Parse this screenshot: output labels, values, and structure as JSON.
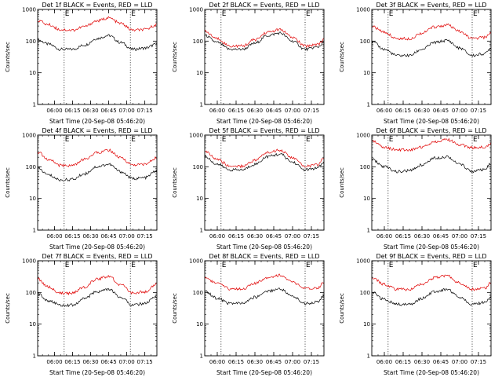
{
  "figure": {
    "xlabel": "Start Time (20-Sep-08 05:46:20)",
    "ylabel": "Counts/sec",
    "y_ticks": [
      1,
      10,
      100,
      1000
    ],
    "y_tick_labels": [
      "1",
      "10",
      "100",
      "1000"
    ],
    "series_colors": {
      "events": "#000000",
      "lld": "#e00000"
    },
    "axis_color": "#000000",
    "background": "#ffffff",
    "eclipse_marker": "E"
  },
  "chart_data": [
    {
      "type": "line",
      "title": "Det 1f BLACK = Events, RED = LLD",
      "xlabel": "Start Time (20-Sep-08 05:46:20)",
      "ylabel": "Counts/sec",
      "yscale": "log",
      "ylim": [
        1,
        1000
      ],
      "x_tick_labels": [
        "06:00",
        "06:15",
        "06:30",
        "06:45",
        "07:00",
        "07:15"
      ],
      "x_ticks": [
        "06:00",
        "06:15",
        "06:30",
        "06:45",
        "07:00",
        "07:15"
      ],
      "xlim": [
        "05:46",
        "07:25"
      ],
      "eclipse_times": [
        "06:08",
        "07:03"
      ],
      "series": [
        {
          "name": "BLACK = Events",
          "color": "#000000",
          "x": [
            "05:46",
            "05:55",
            "06:05",
            "06:15",
            "06:25",
            "06:35",
            "06:45",
            "06:55",
            "07:05",
            "07:15",
            "07:25"
          ],
          "values": [
            110,
            80,
            55,
            55,
            75,
            120,
            150,
            90,
            55,
            60,
            80
          ]
        },
        {
          "name": "RED = LLD",
          "color": "#e00000",
          "x": [
            "05:46",
            "05:55",
            "06:05",
            "06:15",
            "06:25",
            "06:35",
            "06:45",
            "06:55",
            "07:05",
            "07:15",
            "07:25"
          ],
          "values": [
            450,
            330,
            230,
            220,
            290,
            430,
            540,
            360,
            220,
            230,
            330
          ]
        }
      ]
    },
    {
      "type": "line",
      "title": "Det 2f BLACK = Events, RED = LLD",
      "xlabel": "Start Time (20-Sep-08 05:46:20)",
      "ylabel": "Counts/sec",
      "yscale": "log",
      "ylim": [
        1,
        1000
      ],
      "x_tick_labels": [
        "06:00",
        "06:15",
        "06:30",
        "06:45",
        "07:00",
        "07:15"
      ],
      "x_ticks": [
        "06:00",
        "06:15",
        "06:30",
        "06:45",
        "07:00",
        "07:15"
      ],
      "xlim": [
        "05:50",
        "07:25"
      ],
      "eclipse_times": [
        "06:03",
        "07:10"
      ],
      "series": [
        {
          "name": "BLACK = Events",
          "color": "#000000",
          "x": [
            "05:50",
            "06:00",
            "06:10",
            "06:20",
            "06:30",
            "06:40",
            "06:50",
            "07:00",
            "07:10",
            "07:20",
            "07:25"
          ],
          "values": [
            150,
            90,
            55,
            55,
            85,
            150,
            180,
            100,
            55,
            65,
            90
          ]
        },
        {
          "name": "RED = LLD",
          "color": "#e00000",
          "x": [
            "05:50",
            "06:00",
            "06:10",
            "06:20",
            "06:30",
            "06:40",
            "06:50",
            "07:00",
            "07:10",
            "07:20",
            "07:25"
          ],
          "values": [
            200,
            120,
            70,
            70,
            110,
            190,
            230,
            130,
            70,
            80,
            110
          ]
        }
      ]
    },
    {
      "type": "line",
      "title": "Det 3f BLACK = Events, RED = LLD",
      "xlabel": "Start Time (20-Sep-08 05:46:20)",
      "ylabel": "Counts/sec",
      "yscale": "log",
      "ylim": [
        1,
        1000
      ],
      "x_tick_labels": [
        "06:00",
        "06:15",
        "06:30",
        "06:45",
        "07:00",
        "07:15"
      ],
      "x_ticks": [
        "06:00",
        "06:15",
        "06:30",
        "06:45",
        "07:00",
        "07:15"
      ],
      "xlim": [
        "05:50",
        "07:25"
      ],
      "eclipse_times": [
        "06:03",
        "07:10"
      ],
      "series": [
        {
          "name": "BLACK = Events",
          "color": "#000000",
          "x": [
            "05:50",
            "06:00",
            "06:10",
            "06:20",
            "06:30",
            "06:40",
            "06:50",
            "07:00",
            "07:10",
            "07:20",
            "07:25"
          ],
          "values": [
            95,
            55,
            35,
            35,
            55,
            90,
            105,
            60,
            35,
            40,
            60
          ]
        },
        {
          "name": "RED = LLD",
          "color": "#e00000",
          "x": [
            "05:50",
            "06:00",
            "06:10",
            "06:20",
            "06:30",
            "06:40",
            "06:50",
            "07:00",
            "07:10",
            "07:20",
            "07:25"
          ],
          "values": [
            290,
            190,
            120,
            120,
            180,
            280,
            320,
            200,
            120,
            130,
            180
          ]
        }
      ]
    },
    {
      "type": "line",
      "title": "Det 4f BLACK = Events, RED = LLD",
      "xlabel": "Start Time (20-Sep-08 05:46:20)",
      "ylabel": "Counts/sec",
      "yscale": "log",
      "ylim": [
        1,
        1000
      ],
      "x_tick_labels": [
        "06:00",
        "06:15",
        "06:30",
        "06:45",
        "07:00",
        "07:15"
      ],
      "x_ticks": [
        "06:00",
        "06:15",
        "06:30",
        "06:45",
        "07:00",
        "07:15"
      ],
      "xlim": [
        "05:46",
        "07:25"
      ],
      "eclipse_times": [
        "06:08",
        "07:03"
      ],
      "series": [
        {
          "name": "BLACK = Events",
          "color": "#000000",
          "x": [
            "05:46",
            "05:55",
            "06:05",
            "06:15",
            "06:25",
            "06:35",
            "06:45",
            "06:55",
            "07:05",
            "07:15",
            "07:25"
          ],
          "values": [
            90,
            55,
            38,
            40,
            60,
            100,
            120,
            70,
            42,
            45,
            75
          ]
        },
        {
          "name": "RED = LLD",
          "color": "#e00000",
          "x": [
            "05:46",
            "05:55",
            "06:05",
            "06:15",
            "06:25",
            "06:35",
            "06:45",
            "06:55",
            "07:05",
            "07:15",
            "07:25"
          ],
          "values": [
            290,
            170,
            110,
            110,
            170,
            280,
            330,
            190,
            115,
            120,
            190
          ]
        }
      ]
    },
    {
      "type": "line",
      "title": "Det 5f BLACK = Events, RED = LLD",
      "xlabel": "Start Time (20-Sep-08 05:46:20)",
      "ylabel": "Counts/sec",
      "yscale": "log",
      "ylim": [
        1,
        1000
      ],
      "x_tick_labels": [
        "06:00",
        "06:15",
        "06:30",
        "06:45",
        "07:00",
        "07:15"
      ],
      "x_ticks": [
        "06:00",
        "06:15",
        "06:30",
        "06:45",
        "07:00",
        "07:15"
      ],
      "xlim": [
        "05:50",
        "07:25"
      ],
      "eclipse_times": [
        "06:03",
        "07:10"
      ],
      "series": [
        {
          "name": "BLACK = Events",
          "color": "#000000",
          "x": [
            "05:50",
            "06:00",
            "06:10",
            "06:20",
            "06:30",
            "06:40",
            "06:50",
            "07:00",
            "07:10",
            "07:20",
            "07:25"
          ],
          "values": [
            210,
            120,
            80,
            80,
            120,
            210,
            250,
            140,
            80,
            90,
            140
          ]
        },
        {
          "name": "RED = LLD",
          "color": "#e00000",
          "x": [
            "05:50",
            "06:00",
            "06:10",
            "06:20",
            "06:30",
            "06:40",
            "06:50",
            "07:00",
            "07:10",
            "07:20",
            "07:25"
          ],
          "values": [
            300,
            170,
            105,
            105,
            160,
            280,
            340,
            190,
            105,
            115,
            190
          ]
        }
      ]
    },
    {
      "type": "line",
      "title": "Det 6f BLACK = Events, RED = LLD",
      "xlabel": "Start Time (20-Sep-08 05:46:20)",
      "ylabel": "Counts/sec",
      "yscale": "log",
      "ylim": [
        1,
        1000
      ],
      "x_tick_labels": [
        "06:00",
        "06:15",
        "06:30",
        "06:45",
        "07:00",
        "07:15"
      ],
      "x_ticks": [
        "06:00",
        "06:15",
        "06:30",
        "06:45",
        "07:00",
        "07:15"
      ],
      "xlim": [
        "05:50",
        "07:25"
      ],
      "eclipse_times": [
        "06:03",
        "07:10"
      ],
      "series": [
        {
          "name": "BLACK = Events",
          "color": "#000000",
          "x": [
            "05:50",
            "06:00",
            "06:10",
            "06:20",
            "06:30",
            "06:40",
            "06:50",
            "07:00",
            "07:10",
            "07:20",
            "07:25"
          ],
          "values": [
            170,
            100,
            70,
            75,
            115,
            190,
            210,
            120,
            72,
            80,
            125
          ]
        },
        {
          "name": "RED = LLD",
          "color": "#e00000",
          "x": [
            "05:50",
            "06:00",
            "06:10",
            "06:20",
            "06:30",
            "06:40",
            "06:50",
            "07:00",
            "07:10",
            "07:20",
            "07:25"
          ],
          "values": [
            650,
            420,
            340,
            340,
            420,
            620,
            720,
            500,
            400,
            420,
            560
          ]
        }
      ]
    },
    {
      "type": "line",
      "title": "Det 7f BLACK = Events, RED = LLD",
      "xlabel": "Start Time (20-Sep-08 05:46:20)",
      "ylabel": "Counts/sec",
      "yscale": "log",
      "ylim": [
        1,
        1000
      ],
      "x_tick_labels": [
        "06:00",
        "06:15",
        "06:30",
        "06:45",
        "07:00",
        "07:15"
      ],
      "x_ticks": [
        "06:00",
        "06:15",
        "06:30",
        "06:45",
        "07:00",
        "07:15"
      ],
      "xlim": [
        "05:46",
        "07:25"
      ],
      "eclipse_times": [
        "06:08",
        "07:03"
      ],
      "series": [
        {
          "name": "BLACK = Events",
          "color": "#000000",
          "x": [
            "05:46",
            "05:55",
            "06:05",
            "06:15",
            "06:25",
            "06:35",
            "06:45",
            "06:55",
            "07:05",
            "07:15",
            "07:25"
          ],
          "values": [
            90,
            55,
            40,
            40,
            65,
            105,
            125,
            70,
            40,
            45,
            75
          ]
        },
        {
          "name": "RED = LLD",
          "color": "#e00000",
          "x": [
            "05:46",
            "05:55",
            "06:05",
            "06:15",
            "06:25",
            "06:35",
            "06:45",
            "06:55",
            "07:05",
            "07:15",
            "07:25"
          ],
          "values": [
            260,
            150,
            95,
            95,
            150,
            260,
            320,
            175,
            95,
            105,
            180
          ]
        }
      ]
    },
    {
      "type": "line",
      "title": "Det 8f BLACK = Events, RED = LLD",
      "xlabel": "Start Time (20-Sep-08 05:46:20)",
      "ylabel": "Counts/sec",
      "yscale": "log",
      "ylim": [
        1,
        1000
      ],
      "x_tick_labels": [
        "06:00",
        "06:15",
        "06:30",
        "06:45",
        "07:00",
        "07:15"
      ],
      "x_ticks": [
        "06:00",
        "06:15",
        "06:30",
        "06:45",
        "07:00",
        "07:15"
      ],
      "xlim": [
        "05:50",
        "07:25"
      ],
      "eclipse_times": [
        "06:03",
        "07:10"
      ],
      "series": [
        {
          "name": "BLACK = Events",
          "color": "#000000",
          "x": [
            "05:50",
            "06:00",
            "06:10",
            "06:20",
            "06:30",
            "06:40",
            "06:50",
            "07:00",
            "07:10",
            "07:20",
            "07:25"
          ],
          "values": [
            110,
            65,
            45,
            45,
            70,
            110,
            130,
            75,
            45,
            50,
            80
          ]
        },
        {
          "name": "RED = LLD",
          "color": "#e00000",
          "x": [
            "05:50",
            "06:00",
            "06:10",
            "06:20",
            "06:30",
            "06:40",
            "06:50",
            "07:00",
            "07:10",
            "07:20",
            "07:25"
          ],
          "values": [
            300,
            190,
            130,
            130,
            190,
            300,
            350,
            210,
            130,
            140,
            210
          ]
        }
      ]
    },
    {
      "type": "line",
      "title": "Det 9f BLACK = Events, RED = LLD",
      "xlabel": "Start Time (20-Sep-08 05:46:20)",
      "ylabel": "Counts/sec",
      "yscale": "log",
      "ylim": [
        1,
        1000
      ],
      "x_tick_labels": [
        "06:00",
        "06:15",
        "06:30",
        "06:45",
        "07:00",
        "07:15"
      ],
      "x_ticks": [
        "06:00",
        "06:15",
        "06:30",
        "06:45",
        "07:00",
        "07:15"
      ],
      "xlim": [
        "05:50",
        "07:25"
      ],
      "eclipse_times": [
        "06:03",
        "07:10"
      ],
      "series": [
        {
          "name": "BLACK = Events",
          "color": "#000000",
          "x": [
            "05:50",
            "06:00",
            "06:10",
            "06:20",
            "06:30",
            "06:40",
            "06:50",
            "07:00",
            "07:10",
            "07:20",
            "07:25"
          ],
          "values": [
            100,
            60,
            42,
            42,
            65,
            105,
            125,
            72,
            42,
            48,
            75
          ]
        },
        {
          "name": "RED = LLD",
          "color": "#e00000",
          "x": [
            "05:50",
            "06:00",
            "06:10",
            "06:20",
            "06:30",
            "06:40",
            "06:50",
            "07:00",
            "07:10",
            "07:20",
            "07:25"
          ],
          "values": [
            290,
            180,
            125,
            125,
            185,
            290,
            340,
            200,
            125,
            135,
            200
          ]
        }
      ]
    }
  ]
}
